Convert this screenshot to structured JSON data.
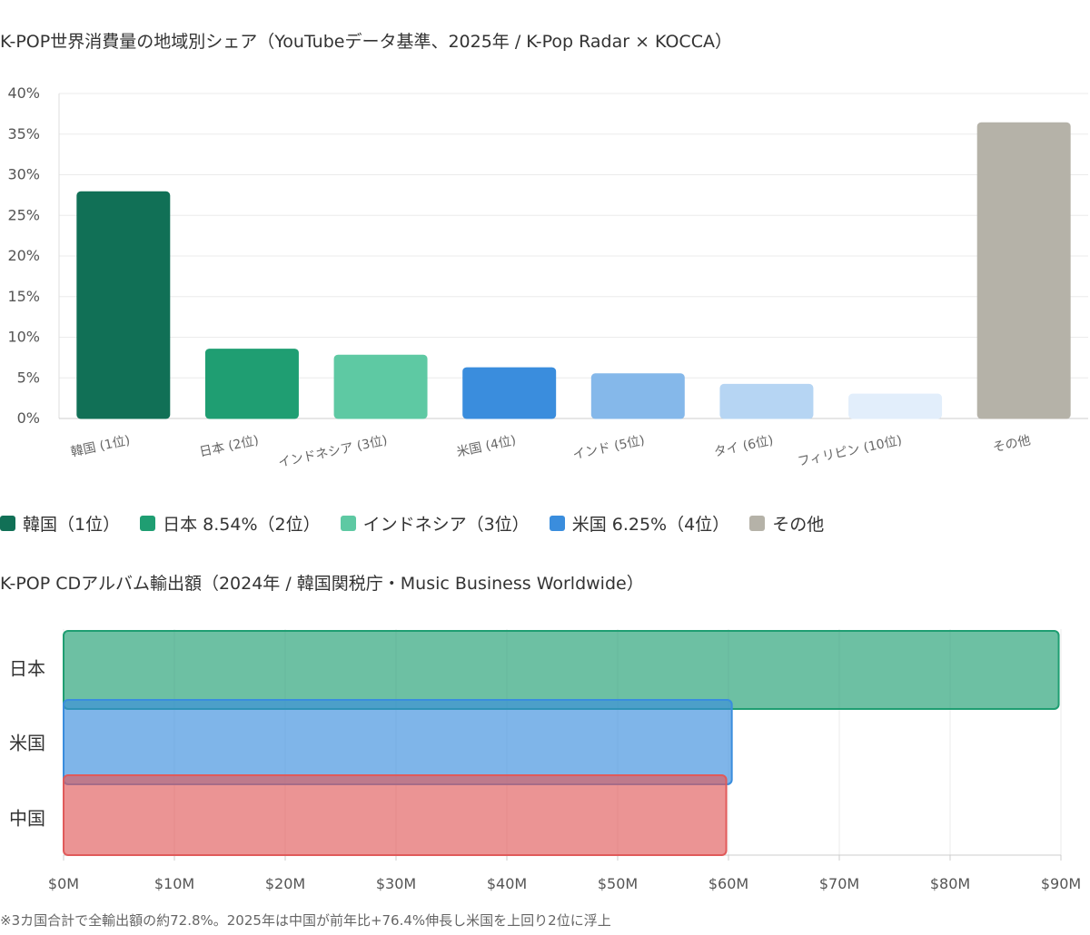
{
  "chart_data": [
    {
      "type": "bar",
      "title": "K-POP世界消費量の地域別シェア（YouTubeデータ基準、2025年 / K-Pop Radar × KOCCA）",
      "categories": [
        "韓国 (1位)",
        "日本 (2位)",
        "インドネシア (3位)",
        "米国 (4位)",
        "インド (5位)",
        "タイ (6位)",
        "フィリピン (10位)",
        "その他"
      ],
      "values": [
        27.9,
        8.54,
        7.8,
        6.25,
        5.5,
        4.2,
        3.0,
        36.4
      ],
      "ylim": [
        0,
        40
      ],
      "yticks": [
        "0%",
        "5%",
        "10%",
        "15%",
        "20%",
        "25%",
        "30%",
        "35%",
        "40%"
      ],
      "colors": [
        "#117056",
        "#1f9e72",
        "#5ec9a3",
        "#3a8ddd",
        "#85b8ea",
        "#b6d5f3",
        "#e2eefb",
        "#b5b2a8"
      ],
      "legend": [
        {
          "label": "韓国（1位）",
          "color": "#117056"
        },
        {
          "label": "日本 8.54%（2位）",
          "color": "#1f9e72"
        },
        {
          "label": "インドネシア（3位）",
          "color": "#5ec9a3"
        },
        {
          "label": "米国 6.25%（4位）",
          "color": "#3a8ddd"
        },
        {
          "label": "その他",
          "color": "#b5b2a8"
        }
      ],
      "legend_position": "bottom-left",
      "grid": true
    },
    {
      "type": "bar",
      "orientation": "horizontal",
      "title": "K-POP CDアルバム輸出額（2024年 / 韓国関税庁・Music Business Worldwide）",
      "categories": [
        "日本",
        "米国",
        "中国"
      ],
      "values": [
        89.8,
        60.3,
        59.8
      ],
      "xlim": [
        0,
        90
      ],
      "xticks": [
        "$0M",
        "$10M",
        "$20M",
        "$30M",
        "$40M",
        "$50M",
        "$60M",
        "$70M",
        "$80M",
        "$90M"
      ],
      "colors": [
        "#1f9e72",
        "#3a8ddd",
        "#e05a5a"
      ],
      "grid": true,
      "note": "※3カ国合計で全輸出額の約72.8%。2025年は中国が前年比+76.4%伸長し米国を上回り2位に浮上"
    }
  ]
}
